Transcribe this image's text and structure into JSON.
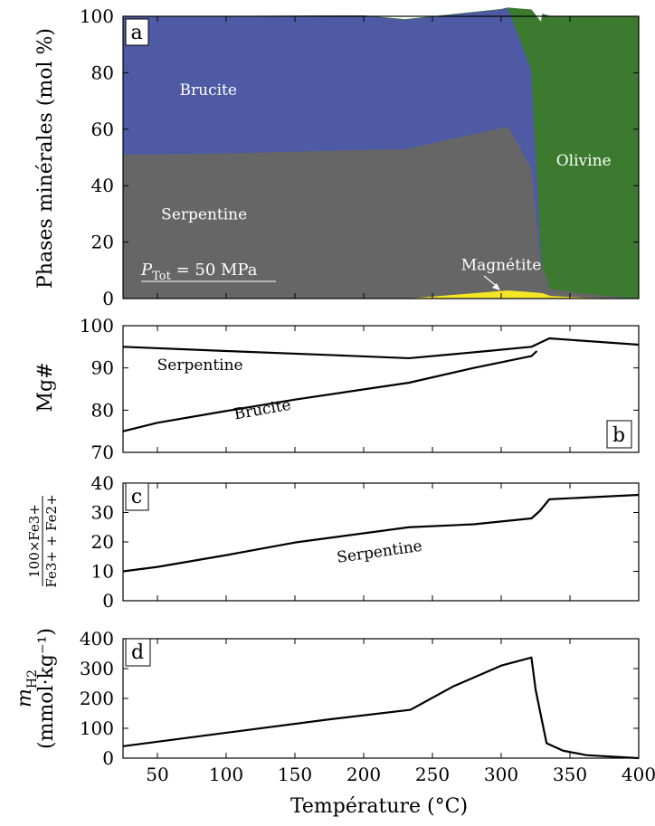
{
  "chart_data": [
    {
      "type": "area",
      "panel_label": "a",
      "ylabel": "Phases minérales (mol %)",
      "xlim": [
        25,
        400
      ],
      "ylim": [
        0,
        100
      ],
      "yticks": [
        "0",
        "20",
        "40",
        "60",
        "80",
        "100"
      ],
      "annotation": {
        "prefix": "P",
        "sub": "Tot",
        "rest": " = 50 MPa"
      },
      "series": [
        {
          "name": "Magnétite",
          "color": "#f5e627",
          "x": [
            25,
            230,
            305,
            330,
            336,
            360,
            400
          ],
          "y": [
            0,
            0,
            3,
            2,
            1,
            0.4,
            0
          ]
        },
        {
          "name": "Serpentine",
          "color": "#666666",
          "x": [
            25,
            100,
            180,
            230,
            305,
            322,
            329,
            336,
            360,
            400
          ],
          "y": [
            51,
            51.5,
            52.5,
            53,
            58,
            44,
            11,
            2.5,
            1.5,
            0
          ]
        },
        {
          "name": "Brucite",
          "color": "#4f5aa4",
          "x": [
            25,
            100,
            200,
            300,
            305,
            322,
            330,
            336,
            400
          ],
          "y": [
            49,
            48.5,
            47.5,
            42,
            42,
            35,
            0,
            0,
            0
          ]
        },
        {
          "name": "Olivine",
          "color": "#3b7a2f",
          "x": [
            25,
            305,
            322,
            330,
            336,
            360,
            400
          ],
          "y": [
            0,
            0,
            21,
            89,
            96.5,
            98,
            100
          ]
        }
      ],
      "labels": [
        {
          "text": "Brucite",
          "x": 87,
          "y": 74
        },
        {
          "text": "Olivine",
          "x": 360,
          "y": 49
        },
        {
          "text": "Serpentine",
          "x": 84,
          "y": 30
        },
        {
          "text": "Magnétite",
          "x": 300,
          "y": 12
        }
      ]
    },
    {
      "type": "line",
      "panel_label": "b",
      "ylabel": "Mg#",
      "xlim": [
        25,
        400
      ],
      "ylim": [
        70,
        100
      ],
      "yticks": [
        "70",
        "80",
        "90",
        "100"
      ],
      "series": [
        {
          "name": "Serpentine",
          "x": [
            25,
            100,
            180,
            233,
            290,
            322,
            335,
            400
          ],
          "y": [
            95,
            94,
            93,
            92.3,
            94,
            95,
            97,
            95.5
          ]
        },
        {
          "name": "Brucite",
          "x": [
            25,
            50,
            100,
            150,
            233,
            280,
            322,
            326
          ],
          "y": [
            75,
            77,
            79.8,
            82.5,
            86.5,
            90,
            92.8,
            94
          ]
        }
      ],
      "labels": [
        {
          "text": "Serpentine",
          "x": 81,
          "y": 89.5
        },
        {
          "text": "Brucite",
          "x": 127,
          "y": 79
        }
      ]
    },
    {
      "type": "line",
      "panel_label": "c",
      "ylabel": {
        "num": "100×Fe3+",
        "den": "Fe3+ + Fe2+"
      },
      "xlim": [
        25,
        400
      ],
      "ylim": [
        0,
        40
      ],
      "yticks": [
        "0",
        "10",
        "20",
        "30",
        "40"
      ],
      "series": [
        {
          "name": "Serpentine",
          "x": [
            25,
            50,
            100,
            150,
            233,
            280,
            322,
            328,
            335,
            400
          ],
          "y": [
            10,
            11.5,
            15.5,
            19.8,
            25,
            26,
            28,
            30.5,
            34.5,
            36
          ]
        }
      ],
      "labels": [
        {
          "text": "Serpentine",
          "x": 212,
          "y": 15
        }
      ]
    },
    {
      "type": "line",
      "panel_label": "d",
      "ylabel": {
        "var": "m",
        "sub": "H2",
        "unit": "(mmol·kg⁻¹)"
      },
      "xlabel": "Température (°C)",
      "xlim": [
        25,
        400
      ],
      "ylim": [
        0,
        400
      ],
      "xticks": [
        "50",
        "100",
        "150",
        "200",
        "250",
        "300",
        "350",
        "400"
      ],
      "yticks": [
        "0",
        "100",
        "200",
        "300",
        "400"
      ],
      "series": [
        {
          "name": "mH2",
          "x": [
            25,
            100,
            175,
            234,
            265,
            300,
            322,
            325,
            333,
            345,
            362,
            400
          ],
          "y": [
            40,
            85,
            130,
            162,
            240,
            310,
            337,
            230,
            50,
            25,
            10,
            0
          ]
        }
      ]
    }
  ]
}
